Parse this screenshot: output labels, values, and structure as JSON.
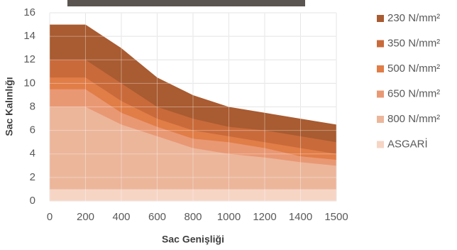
{
  "chart_data": {
    "type": "area",
    "x_label": "Sac Genişliği",
    "y_label": "Sac Kalınlığı",
    "categories": [
      "0",
      "200",
      "400",
      "600",
      "800",
      "1000",
      "1200",
      "1400",
      "1500"
    ],
    "series": [
      {
        "name": "230 N/mm²",
        "color": "#a95b31",
        "values": [
          15,
          15,
          13,
          10.5,
          9,
          8,
          7.5,
          7,
          6.5
        ]
      },
      {
        "name": "350 N/mm²",
        "color": "#c96a3b",
        "values": [
          12,
          12,
          10,
          8,
          7,
          6.3,
          6,
          5.5,
          5
        ]
      },
      {
        "name": "500 N/mm²",
        "color": "#e17d47",
        "values": [
          10.5,
          10.5,
          8.5,
          7,
          6,
          5.5,
          5,
          4.5,
          4
        ]
      },
      {
        "name": "650 N/mm²",
        "color": "#e99874",
        "values": [
          9.5,
          9.5,
          7.5,
          6.3,
          5.3,
          5,
          4.5,
          3.8,
          3.5
        ]
      },
      {
        "name": "800 N/mm²",
        "color": "#ecb69b",
        "values": [
          8,
          8,
          6.5,
          5.5,
          4.5,
          4,
          3.7,
          3.3,
          3
        ]
      },
      {
        "name": "ASGARİ",
        "color": "#f6d5c5",
        "values": [
          1,
          1,
          1,
          1,
          1,
          1,
          1,
          1,
          1
        ]
      }
    ],
    "ylim": [
      0,
      16
    ],
    "yticks": [
      0,
      2,
      4,
      6,
      8,
      10,
      12,
      14,
      16
    ],
    "grid": true,
    "legend": "right"
  }
}
